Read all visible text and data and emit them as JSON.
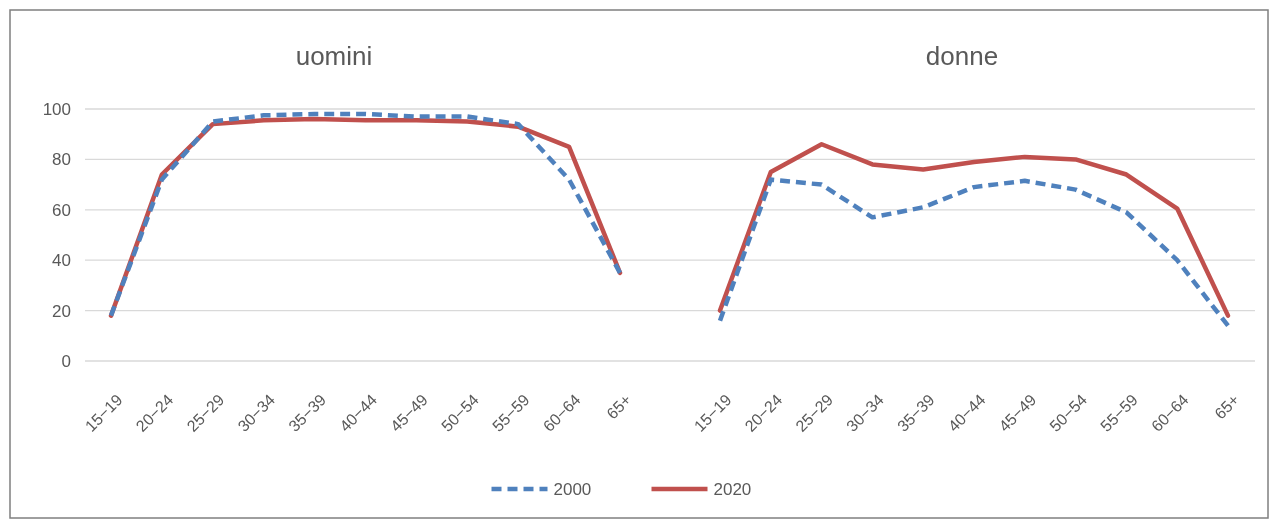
{
  "chart_data": [
    {
      "type": "line",
      "title": "uomini",
      "categories": [
        "15−19",
        "20−24",
        "25−29",
        "30−34",
        "35−39",
        "40−44",
        "45−49",
        "50−54",
        "55−59",
        "60−64",
        "65+"
      ],
      "ylim": [
        0,
        100
      ],
      "yticks": [
        0,
        20,
        40,
        60,
        80,
        100
      ],
      "grid": "y",
      "legend": "bottom",
      "series": [
        {
          "name": "2000",
          "color": "#4f81bd",
          "line_style": "dashed",
          "values": [
            18,
            72,
            95,
            97.5,
            98,
            98,
            97,
            97,
            94,
            72,
            35
          ]
        },
        {
          "name": "2020",
          "color": "#c0504d",
          "line_style": "solid",
          "values": [
            18,
            74,
            94,
            95.5,
            96,
            95.5,
            95.5,
            95,
            93,
            85,
            35
          ]
        }
      ]
    },
    {
      "type": "line",
      "title": "donne",
      "categories": [
        "15−19",
        "20−24",
        "25−29",
        "30−34",
        "35−39",
        "40−44",
        "45−49",
        "50−54",
        "55−59",
        "60−64",
        "65+"
      ],
      "ylim": [
        0,
        100
      ],
      "yticks": [
        0,
        20,
        40,
        60,
        80,
        100
      ],
      "grid": "y",
      "tick_labels": "x",
      "series": [
        {
          "color": "#4f81bd",
          "line_style": "dashed",
          "values": [
            16,
            72,
            70,
            57,
            61,
            69,
            71.5,
            68,
            59,
            40,
            14
          ]
        },
        {
          "color": "#c0504d",
          "line_style": "solid",
          "values": [
            20,
            75,
            86,
            78,
            76,
            79,
            81,
            80,
            74,
            60.5,
            18
          ]
        }
      ]
    }
  ]
}
